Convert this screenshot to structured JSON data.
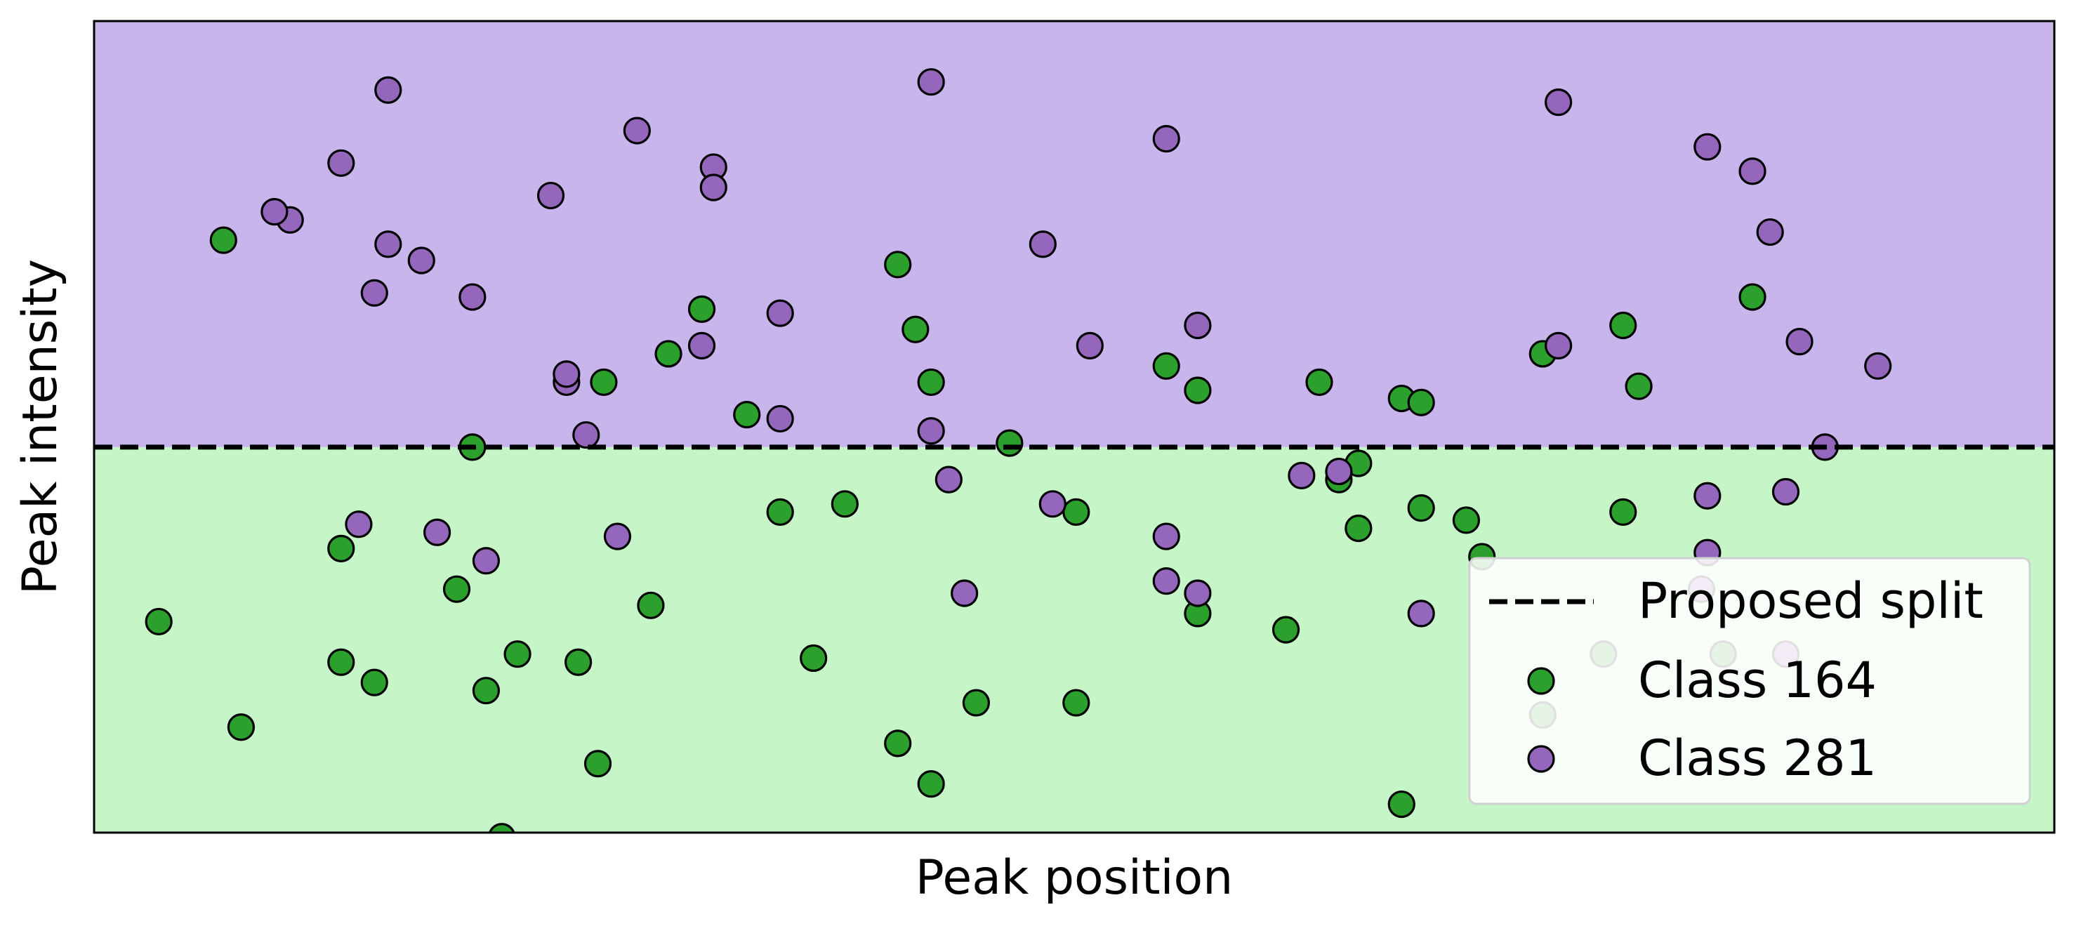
{
  "chart_data": {
    "type": "scatter",
    "title": "",
    "xlabel": "Peak position",
    "ylabel": "Peak intensity",
    "xlim": [
      0,
      100
    ],
    "ylim": [
      0,
      100
    ],
    "xticks": [],
    "yticks": [],
    "grid": false,
    "legend_position": "lower-right",
    "split": {
      "label": "Proposed split",
      "y": 47.5,
      "style": "dashed",
      "color": "#000000"
    },
    "regions": [
      {
        "name": "above split",
        "color": "#c7b5ec"
      },
      {
        "name": "below split",
        "color": "#c6f5c7"
      }
    ],
    "series": [
      {
        "name": "Class 164",
        "color": "#2ca02c",
        "points": [
          [
            6.6,
            73.0
          ],
          [
            3.3,
            26.0
          ],
          [
            7.5,
            13.0
          ],
          [
            12.6,
            35.0
          ],
          [
            12.6,
            21.0
          ],
          [
            14.3,
            18.5
          ],
          [
            18.5,
            30.0
          ],
          [
            19.3,
            47.5
          ],
          [
            20.0,
            17.5
          ],
          [
            21.6,
            22.0
          ],
          [
            24.7,
            21.0
          ],
          [
            25.7,
            8.5
          ],
          [
            26.0,
            55.5
          ],
          [
            28.4,
            28.0
          ],
          [
            29.3,
            59.0
          ],
          [
            31.0,
            64.5
          ],
          [
            33.3,
            51.5
          ],
          [
            35.0,
            39.5
          ],
          [
            36.7,
            21.5
          ],
          [
            38.3,
            40.5
          ],
          [
            41.0,
            70.0
          ],
          [
            41.9,
            62.0
          ],
          [
            41.0,
            11.0
          ],
          [
            42.7,
            55.5
          ],
          [
            42.7,
            6.0
          ],
          [
            45.0,
            16.0
          ],
          [
            46.7,
            48.0
          ],
          [
            50.1,
            16.0
          ],
          [
            50.1,
            39.5
          ],
          [
            54.7,
            57.5
          ],
          [
            56.3,
            54.5
          ],
          [
            56.3,
            27.0
          ],
          [
            60.8,
            25.0
          ],
          [
            62.5,
            55.5
          ],
          [
            63.5,
            43.5
          ],
          [
            64.5,
            37.5
          ],
          [
            64.5,
            45.5
          ],
          [
            66.7,
            53.5
          ],
          [
            67.7,
            53.0
          ],
          [
            67.7,
            40.0
          ],
          [
            66.7,
            3.5
          ],
          [
            70.0,
            38.5
          ],
          [
            70.8,
            34.0
          ],
          [
            73.9,
            14.5
          ],
          [
            73.9,
            59.0
          ],
          [
            78.0,
            62.5
          ],
          [
            78.8,
            55.0
          ],
          [
            78.0,
            39.5
          ],
          [
            77.0,
            22.0
          ],
          [
            84.6,
            66.0
          ],
          [
            83.1,
            22.0
          ],
          [
            20.8,
            -0.5
          ]
        ]
      },
      {
        "name": "Class 281",
        "color": "#9467bd",
        "points": [
          [
            15.0,
            91.5
          ],
          [
            10.0,
            75.5
          ],
          [
            12.6,
            82.5
          ],
          [
            9.2,
            76.5
          ],
          [
            14.3,
            66.5
          ],
          [
            15.0,
            72.5
          ],
          [
            16.7,
            70.5
          ],
          [
            19.3,
            66.0
          ],
          [
            13.5,
            38.0
          ],
          [
            17.5,
            37.0
          ],
          [
            20.0,
            33.5
          ],
          [
            23.3,
            78.5
          ],
          [
            24.1,
            55.5
          ],
          [
            24.1,
            56.5
          ],
          [
            25.1,
            49.0
          ],
          [
            26.7,
            36.5
          ],
          [
            27.7,
            86.5
          ],
          [
            31.0,
            60.0
          ],
          [
            31.6,
            82.0
          ],
          [
            31.6,
            79.5
          ],
          [
            35.0,
            64.0
          ],
          [
            35.0,
            51.0
          ],
          [
            42.7,
            92.5
          ],
          [
            42.7,
            49.5
          ],
          [
            43.6,
            43.5
          ],
          [
            44.4,
            29.5
          ],
          [
            48.4,
            72.5
          ],
          [
            48.9,
            40.5
          ],
          [
            50.8,
            60.0
          ],
          [
            54.7,
            85.5
          ],
          [
            54.7,
            36.5
          ],
          [
            54.7,
            31.0
          ],
          [
            56.3,
            62.5
          ],
          [
            56.3,
            29.5
          ],
          [
            61.6,
            44.0
          ],
          [
            63.5,
            44.5
          ],
          [
            67.7,
            27.0
          ],
          [
            74.7,
            90.0
          ],
          [
            74.7,
            60.0
          ],
          [
            82.3,
            84.5
          ],
          [
            82.3,
            41.5
          ],
          [
            82.3,
            34.5
          ],
          [
            82.0,
            30.0
          ],
          [
            84.6,
            81.5
          ],
          [
            85.5,
            74.0
          ],
          [
            86.3,
            42.0
          ],
          [
            87.0,
            60.5
          ],
          [
            88.3,
            47.5
          ],
          [
            91.0,
            57.5
          ],
          [
            86.3,
            22.0
          ]
        ]
      }
    ]
  }
}
